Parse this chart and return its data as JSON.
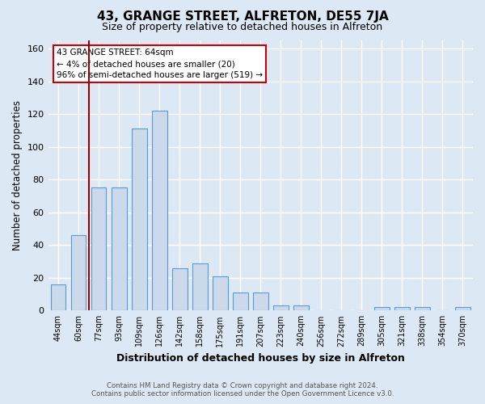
{
  "title": "43, GRANGE STREET, ALFRETON, DE55 7JA",
  "subtitle": "Size of property relative to detached houses in Alfreton",
  "xlabel": "Distribution of detached houses by size in Alfreton",
  "ylabel": "Number of detached properties",
  "categories": [
    "44sqm",
    "60sqm",
    "77sqm",
    "93sqm",
    "109sqm",
    "126sqm",
    "142sqm",
    "158sqm",
    "175sqm",
    "191sqm",
    "207sqm",
    "223sqm",
    "240sqm",
    "256sqm",
    "272sqm",
    "289sqm",
    "305sqm",
    "321sqm",
    "338sqm",
    "354sqm",
    "370sqm"
  ],
  "values": [
    16,
    46,
    75,
    75,
    111,
    122,
    26,
    29,
    21,
    11,
    11,
    3,
    3,
    0,
    0,
    0,
    2,
    2,
    2,
    0,
    2
  ],
  "bar_color": "#ccd9ea",
  "bar_edge_color": "#5b9bd5",
  "background_color": "#dce9f5",
  "plot_bg_color": "#dce9f5",
  "grid_color": "#ffffff",
  "annotation_box_text": "43 GRANGE STREET: 64sqm\n← 4% of detached houses are smaller (20)\n96% of semi-detached houses are larger (519) →",
  "annotation_box_color": "#ffffff",
  "annotation_box_edge_color": "#cc0000",
  "vline_x": 1.5,
  "vline_color": "#990000",
  "ylim": [
    0,
    165
  ],
  "yticks": [
    0,
    20,
    40,
    60,
    80,
    100,
    120,
    140,
    160
  ],
  "footer_line1": "Contains HM Land Registry data © Crown copyright and database right 2024.",
  "footer_line2": "Contains public sector information licensed under the Open Government Licence v3.0.",
  "title_fontsize": 11,
  "subtitle_fontsize": 9,
  "tick_fontsize": 7,
  "ylabel_fontsize": 8.5,
  "xlabel_fontsize": 9,
  "bar_width": 0.75
}
